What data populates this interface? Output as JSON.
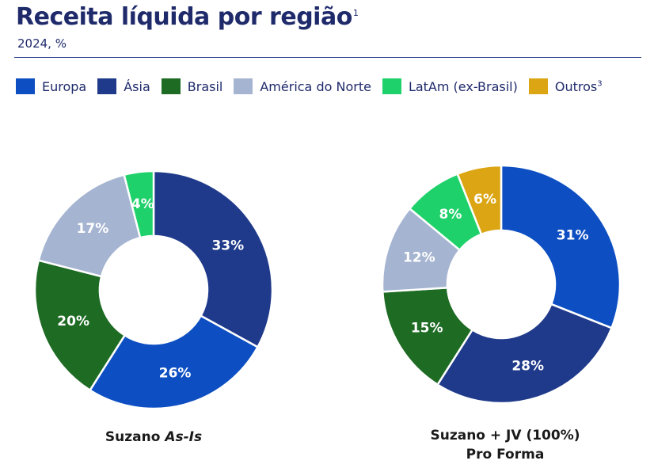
{
  "title": "Receita líquida por região",
  "title_footnote": "1",
  "subtitle": "2024, %",
  "legend": [
    {
      "label": "Europa",
      "color": "#0d4fc2"
    },
    {
      "label": "Ásia",
      "color": "#1f3a8a"
    },
    {
      "label": "Brasil",
      "color": "#1e6b24"
    },
    {
      "label": "América do Norte",
      "color": "#a5b4d1"
    },
    {
      "label": "LatAm (ex-Brasil)",
      "color": "#1fd16a"
    },
    {
      "label": "Outros",
      "color": "#dba514",
      "footnote": "3"
    }
  ],
  "chart_data": [
    {
      "type": "pie",
      "donut": true,
      "caption_main": "Suzano ",
      "caption_emph": "As-Is",
      "slices": [
        {
          "category": "Ásia",
          "value": 33,
          "label": "33%",
          "color": "#1f3a8a"
        },
        {
          "category": "Europa",
          "value": 26,
          "label": "26%",
          "color": "#0d4fc2"
        },
        {
          "category": "Brasil",
          "value": 20,
          "label": "20%",
          "color": "#1e6b24"
        },
        {
          "category": "América do Norte",
          "value": 17,
          "label": "17%",
          "color": "#a5b4d1"
        },
        {
          "category": "LatAm (ex-Brasil)",
          "value": 4,
          "label": "4%",
          "color": "#1fd16a"
        }
      ]
    },
    {
      "type": "pie",
      "donut": true,
      "caption_line1": "Suzano + JV (100%)",
      "caption_line2": "Pro Forma",
      "slices": [
        {
          "category": "Europa",
          "value": 31,
          "label": "31%",
          "color": "#0d4fc2"
        },
        {
          "category": "Ásia",
          "value": 28,
          "label": "28%",
          "color": "#1f3a8a"
        },
        {
          "category": "Brasil",
          "value": 15,
          "label": "15%",
          "color": "#1e6b24"
        },
        {
          "category": "América do Norte",
          "value": 12,
          "label": "12%",
          "color": "#a5b4d1"
        },
        {
          "category": "LatAm (ex-Brasil)",
          "value": 8,
          "label": "8%",
          "color": "#1fd16a"
        },
        {
          "category": "Outros",
          "value": 6,
          "label": "6%",
          "color": "#dba514"
        }
      ]
    }
  ]
}
